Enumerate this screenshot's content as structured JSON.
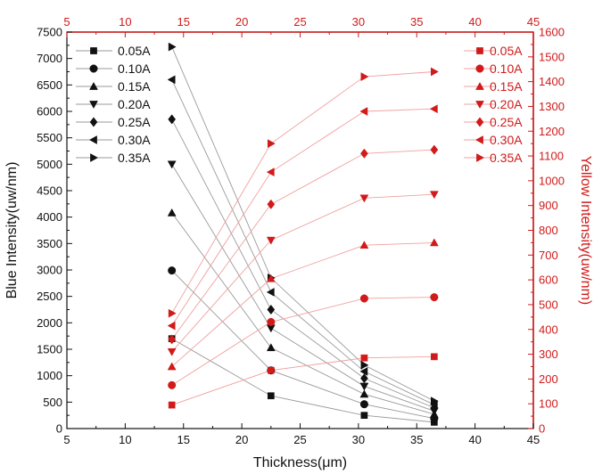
{
  "chart_data": {
    "type": "line",
    "xlabel": "Thickness(μm)",
    "ylabel": "Blue Intensity(uw/nm)",
    "ylabel_right": "Yellow Intensity(uw/nm)",
    "xlim": [
      5,
      45
    ],
    "ylim": [
      0,
      7500
    ],
    "ylim_right": [
      0,
      1600
    ],
    "x_ticks": [
      "5",
      "10",
      "15",
      "20",
      "25",
      "30",
      "35",
      "40",
      "45"
    ],
    "y_ticks": [
      "0",
      "500",
      "1000",
      "1500",
      "2000",
      "2500",
      "3000",
      "3500",
      "4000",
      "4500",
      "5000",
      "5500",
      "6000",
      "6500",
      "7000",
      "7500"
    ],
    "y_ticks_right": [
      "0",
      "100",
      "200",
      "300",
      "400",
      "500",
      "600",
      "700",
      "800",
      "900",
      "1000",
      "1100",
      "1200",
      "1300",
      "1400",
      "1500",
      "1600"
    ],
    "x_ticks_top": [
      "5",
      "10",
      "15",
      "20",
      "25",
      "30",
      "35",
      "40",
      "45"
    ],
    "legend_position_blue": "top-left",
    "legend_position_yellow": "top-right",
    "colors": {
      "blue_axis": "#111111",
      "yellow_axis": "#d11a1a",
      "line_gray": "#9a9a9a",
      "line_pink": "#f0a0a0"
    },
    "x": [
      14,
      22.5,
      30.5,
      36.5
    ],
    "blue_series": [
      {
        "name": "0.05A",
        "marker": "square",
        "values": [
          1700,
          620,
          250,
          120
        ]
      },
      {
        "name": "0.10A",
        "marker": "circle",
        "values": [
          2990,
          1100,
          460,
          190
        ]
      },
      {
        "name": "0.15A",
        "marker": "triangle-up",
        "values": [
          4080,
          1530,
          650,
          270
        ]
      },
      {
        "name": "0.20A",
        "marker": "triangle-down",
        "values": [
          5000,
          1900,
          800,
          330
        ]
      },
      {
        "name": "0.25A",
        "marker": "diamond",
        "values": [
          5850,
          2250,
          950,
          390
        ]
      },
      {
        "name": "0.30A",
        "marker": "triangle-left",
        "values": [
          6600,
          2580,
          1080,
          450
        ]
      },
      {
        "name": "0.35A",
        "marker": "triangle-right",
        "values": [
          7220,
          2850,
          1200,
          520
        ]
      }
    ],
    "yellow_series": [
      {
        "name": "0.05A",
        "marker": "square",
        "values": [
          95,
          235,
          285,
          290
        ]
      },
      {
        "name": "0.10A",
        "marker": "circle",
        "values": [
          175,
          430,
          525,
          530
        ]
      },
      {
        "name": "0.15A",
        "marker": "triangle-up",
        "values": [
          250,
          605,
          740,
          750
        ]
      },
      {
        "name": "0.20A",
        "marker": "triangle-down",
        "values": [
          310,
          760,
          930,
          945
        ]
      },
      {
        "name": "0.25A",
        "marker": "diamond",
        "values": [
          360,
          905,
          1110,
          1125
        ]
      },
      {
        "name": "0.30A",
        "marker": "triangle-left",
        "values": [
          415,
          1035,
          1280,
          1290
        ]
      },
      {
        "name": "0.35A",
        "marker": "triangle-right",
        "values": [
          465,
          1150,
          1420,
          1440
        ]
      }
    ]
  }
}
